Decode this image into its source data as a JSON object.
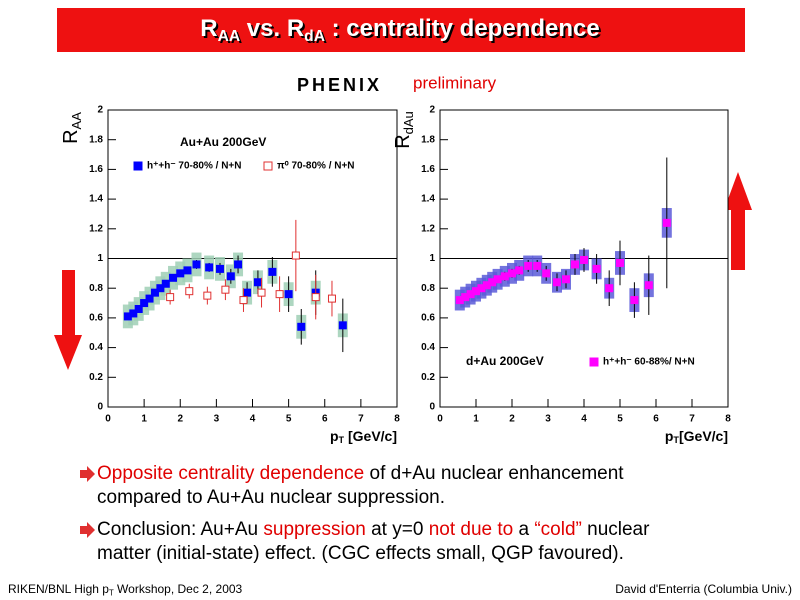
{
  "title": [
    {
      "text": "R"
    },
    {
      "text": "AA",
      "sub": true
    },
    {
      "text": " vs. R"
    },
    {
      "text": "dA",
      "sub": true
    },
    {
      "text": " : centrality dependence"
    }
  ],
  "logo": "PHENIX",
  "logo_note": "preliminary",
  "chart_data": [
    {
      "type": "scatter",
      "annotation": "Au+Au 200GeV",
      "ylabel": [
        {
          "text": "R"
        },
        {
          "text": "AA",
          "sub": true
        }
      ],
      "xlabel": [
        {
          "text": "p"
        },
        {
          "text": "T",
          "sub": true
        },
        {
          "text": " [GeV/c]"
        }
      ],
      "xlim": [
        0,
        8
      ],
      "xticks": [
        0,
        1,
        2,
        3,
        4,
        5,
        6,
        7,
        8
      ],
      "ylim": [
        0,
        2
      ],
      "yticks": [
        0,
        0.2,
        0.4,
        0.6,
        0.8,
        1,
        1.2,
        1.4,
        1.6,
        1.8,
        2
      ],
      "reference_line": 1,
      "series": [
        {
          "name": "h⁺+h⁻ 70-80% / N+N",
          "color": "#0000ff",
          "marker": "filled",
          "box_color": "#9fcfb5",
          "x": [
            0.55,
            0.7,
            0.85,
            1.0,
            1.15,
            1.3,
            1.45,
            1.6,
            1.8,
            2.0,
            2.2,
            2.45,
            2.8,
            3.1,
            3.4,
            3.6,
            3.85,
            4.15,
            4.55,
            5.0,
            5.35,
            5.75,
            6.5
          ],
          "values": [
            0.61,
            0.63,
            0.66,
            0.7,
            0.73,
            0.77,
            0.8,
            0.83,
            0.87,
            0.9,
            0.92,
            0.96,
            0.94,
            0.93,
            0.88,
            0.96,
            0.77,
            0.84,
            0.91,
            0.76,
            0.54,
            0.77,
            0.55
          ],
          "sys": [
            0.08,
            0.08,
            0.08,
            0.08,
            0.08,
            0.08,
            0.08,
            0.08,
            0.08,
            0.08,
            0.08,
            0.08,
            0.08,
            0.08,
            0.08,
            0.08,
            0.08,
            0.08,
            0.08,
            0.08,
            0.08,
            0.08,
            0.08
          ],
          "errors": [
            0.02,
            0.02,
            0.02,
            0.02,
            0.02,
            0.02,
            0.02,
            0.02,
            0.02,
            0.02,
            0.02,
            0.03,
            0.03,
            0.04,
            0.05,
            0.06,
            0.07,
            0.08,
            0.1,
            0.12,
            0.12,
            0.15,
            0.18
          ]
        },
        {
          "name": "π⁰ 70-80% / N+N",
          "color": "#e03030",
          "marker": "open",
          "x": [
            1.72,
            2.25,
            2.75,
            3.25,
            3.75,
            4.25,
            4.75,
            5.2,
            5.75,
            6.2
          ],
          "values": [
            0.74,
            0.78,
            0.75,
            0.79,
            0.72,
            0.77,
            0.76,
            1.02,
            0.74,
            0.73
          ],
          "errors": [
            0.05,
            0.05,
            0.06,
            0.07,
            0.08,
            0.1,
            0.12,
            0.24,
            0.15,
            0.12
          ]
        }
      ]
    },
    {
      "type": "scatter",
      "annotation": "d+Au 200GeV",
      "ylabel": [
        {
          "text": "R"
        },
        {
          "text": "dAu",
          "sub": true
        }
      ],
      "xlabel": [
        {
          "text": "p"
        },
        {
          "text": "T",
          "sub": true
        },
        {
          "text": "[GeV/c]"
        }
      ],
      "xlim": [
        0,
        8
      ],
      "xticks": [
        0,
        1,
        2,
        3,
        4,
        5,
        6,
        7,
        8
      ],
      "ylim": [
        0,
        2
      ],
      "yticks": [
        0,
        0.2,
        0.4,
        0.6,
        0.8,
        1,
        1.2,
        1.4,
        1.6,
        1.8,
        2
      ],
      "reference_line": 1,
      "series": [
        {
          "name": "h⁺+h⁻ 60-88%/ N+N",
          "color": "#ff00ff",
          "marker": "filled",
          "box_color": "#5a5ad8",
          "x": [
            0.55,
            0.7,
            0.85,
            1.0,
            1.15,
            1.3,
            1.45,
            1.6,
            1.8,
            2.0,
            2.2,
            2.45,
            2.7,
            2.95,
            3.25,
            3.5,
            3.75,
            4.0,
            4.35,
            4.7,
            5.0,
            5.4,
            5.8,
            6.3
          ],
          "values": [
            0.72,
            0.74,
            0.76,
            0.78,
            0.8,
            0.82,
            0.84,
            0.86,
            0.88,
            0.9,
            0.92,
            0.95,
            0.95,
            0.9,
            0.84,
            0.86,
            0.96,
            0.99,
            0.93,
            0.8,
            0.97,
            0.72,
            0.82,
            1.24
          ],
          "sys": [
            0.07,
            0.07,
            0.07,
            0.07,
            0.07,
            0.07,
            0.07,
            0.07,
            0.07,
            0.07,
            0.07,
            0.07,
            0.07,
            0.07,
            0.07,
            0.07,
            0.07,
            0.07,
            0.07,
            0.07,
            0.08,
            0.08,
            0.08,
            0.1
          ],
          "errors": [
            0.02,
            0.02,
            0.02,
            0.02,
            0.02,
            0.02,
            0.02,
            0.02,
            0.03,
            0.03,
            0.03,
            0.04,
            0.04,
            0.05,
            0.06,
            0.06,
            0.07,
            0.08,
            0.1,
            0.12,
            0.15,
            0.12,
            0.2,
            0.44
          ]
        }
      ]
    }
  ],
  "bullets": [
    [
      [
        {
          "text": "Opposite centrality dependence",
          "color": "#e00000"
        },
        {
          "text": " of d+Au nuclear enhancement"
        }
      ],
      [
        {
          "text": "compared to Au+Au nuclear suppression."
        }
      ]
    ],
    [
      [
        {
          "text": "Conclusion: Au+Au "
        },
        {
          "text": "suppression",
          "color": "#e00000"
        },
        {
          "text": " at y=0 "
        },
        {
          "text": "not due to",
          "color": "#e00000"
        },
        {
          "text": " a "
        },
        {
          "text": "“cold”",
          "color": "#e00000"
        },
        {
          "text": " nuclear"
        }
      ],
      [
        {
          "text": "matter (initial-state) effect. (CGC effects small, QGP favoured)."
        }
      ]
    ]
  ],
  "footer_left": [
    {
      "text": "RIKEN/BNL High p"
    },
    {
      "text": "T",
      "sub": true
    },
    {
      "text": " Workshop, Dec 2, 2003"
    }
  ],
  "footer_right": "David d'Enterria (Columbia Univ.)"
}
